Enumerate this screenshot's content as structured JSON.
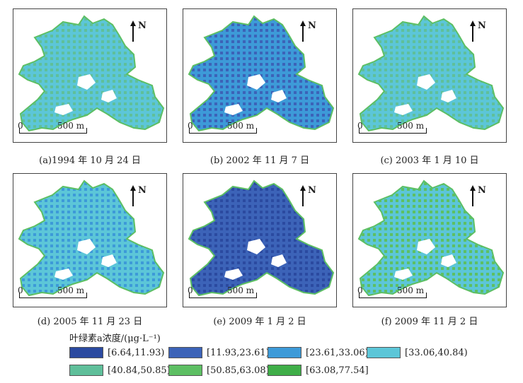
{
  "panels": [
    {
      "caption": "(a)1994 年 10 月 24 日",
      "north": "N",
      "scale_zero": "0",
      "scale_label": "500 m",
      "dominant": 3,
      "accent": 4
    },
    {
      "caption": "(b) 2002 年 11 月 7 日",
      "north": "N",
      "scale_zero": "0",
      "scale_label": "500 m",
      "dominant": 2,
      "accent": 1
    },
    {
      "caption": "(c) 2003 年 1 月 10 日",
      "north": "N",
      "scale_zero": "0",
      "scale_label": "500 m",
      "dominant": 3,
      "accent": 4
    },
    {
      "caption": "(d) 2005 年 11 月 23 日",
      "north": "N",
      "scale_zero": "0",
      "scale_label": "500 m",
      "dominant": 3,
      "accent": 2
    },
    {
      "caption": "(e) 2009 年 1 月 2 日",
      "north": "N",
      "scale_zero": "0",
      "scale_label": "500 m",
      "dominant": 1,
      "accent": 0
    },
    {
      "caption": "(f) 2009 年 11 月 2 日",
      "north": "N",
      "scale_zero": "0",
      "scale_label": "500 m",
      "dominant": 3,
      "accent": 5
    }
  ],
  "legend": {
    "title": "叶绿素a浓度/(μg·L⁻¹)",
    "classes": [
      {
        "label": "[6.64,11.93)",
        "color": "#2b4aa0"
      },
      {
        "label": "[11.93,23.61)",
        "color": "#3c63b8"
      },
      {
        "label": "[23.61,33.06)",
        "color": "#3d9ad8"
      },
      {
        "label": "[33.06,40.84)",
        "color": "#5cc6d8"
      },
      {
        "label": "[40.84,50.85)",
        "color": "#5fbf9a"
      },
      {
        "label": "[50.85,63.08)",
        "color": "#5dbf63"
      },
      {
        "label": "[63.08,77.54]",
        "color": "#3fae48"
      }
    ]
  }
}
